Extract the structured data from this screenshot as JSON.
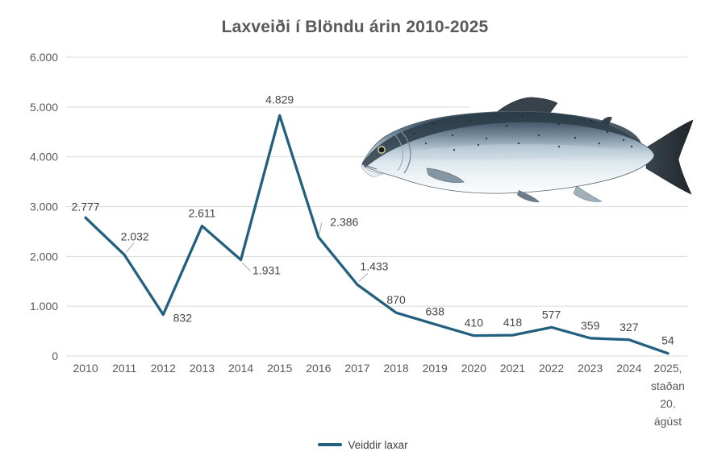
{
  "chart_data": {
    "type": "line",
    "title": "Laxveiði í Blöndu árin 2010-2025",
    "categories": [
      "2010",
      "2011",
      "2012",
      "2013",
      "2014",
      "2015",
      "2016",
      "2017",
      "2018",
      "2019",
      "2020",
      "2021",
      "2022",
      "2023",
      "2024",
      "2025, staðan 20. ágúst"
    ],
    "series": [
      {
        "name": "Veiddir laxar",
        "values": [
          2777,
          2032,
          832,
          2611,
          1931,
          4829,
          2386,
          1433,
          870,
          638,
          410,
          418,
          577,
          359,
          327,
          54
        ]
      }
    ],
    "data_labels": [
      "2.777",
      "2.032",
      "832",
      "2.611",
      "1.931",
      "4.829",
      "2.386",
      "1.433",
      "870",
      "638",
      "410",
      "418",
      "577",
      "359",
      "327",
      "54"
    ],
    "y_ticks": [
      "6.000",
      "5.000",
      "4.000",
      "3.000",
      "2.000",
      "1.000",
      "0"
    ],
    "ylim": [
      0,
      6000
    ],
    "grid": true,
    "legend_position": "bottom",
    "colors": {
      "line": "#235F7E",
      "grid": "#D9D9D9",
      "tick_text": "#595959",
      "data_label_text": "#454545",
      "leader_line": "#ABABAB",
      "title_text": "#595959",
      "background": "#FFFFFF"
    }
  },
  "legend": {
    "label": "Veiddir laxar"
  },
  "decoration": {
    "image_name": "atlantic-salmon-illustration"
  }
}
